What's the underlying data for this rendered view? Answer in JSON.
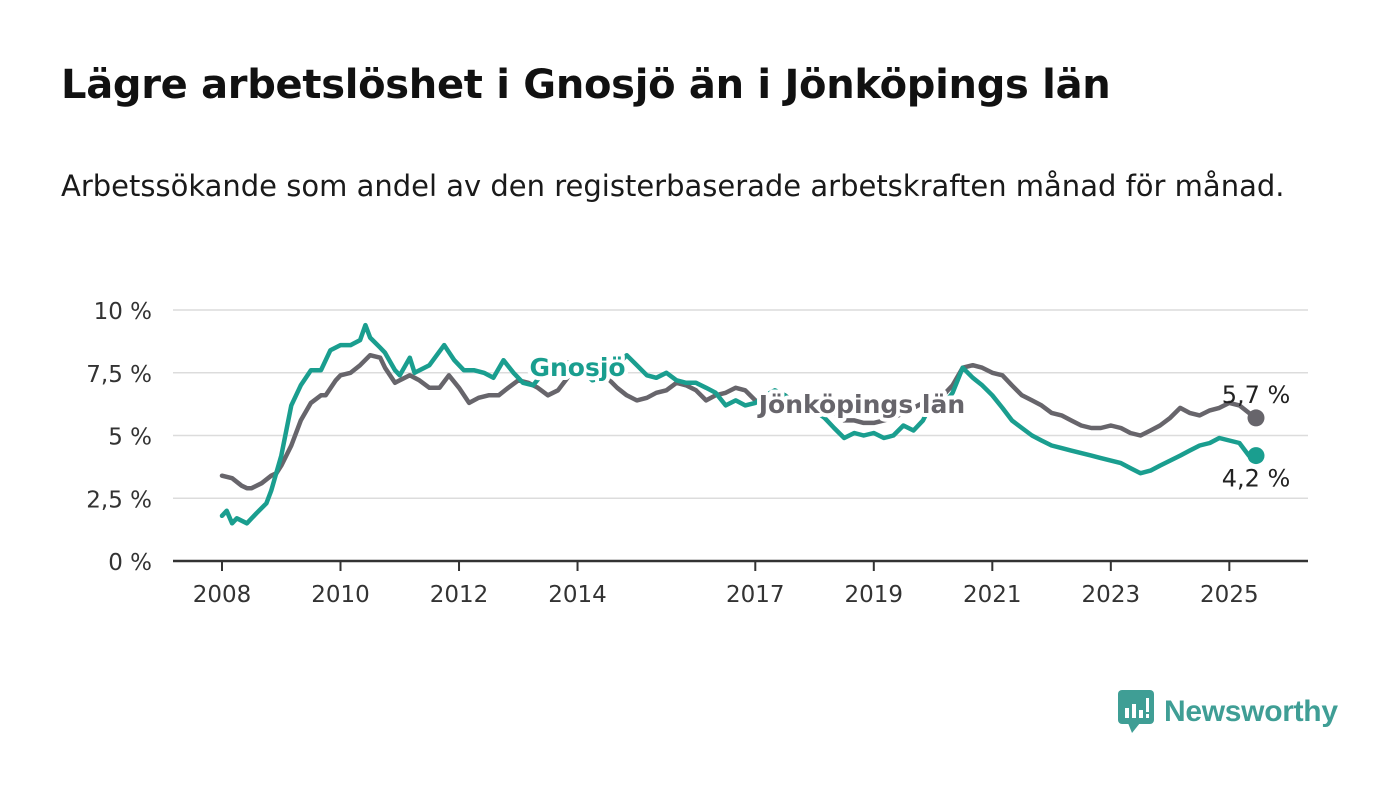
{
  "header": {
    "title": "Lägre arbetslöshet i Gnosjö än i Jönköpings län",
    "subtitle": "Arbetssökande som andel av den registerbaserade arbetskraften månad för månad."
  },
  "brand": {
    "name": "Newsworthy",
    "color": "#3f9e95"
  },
  "chart_data": {
    "type": "line",
    "ylim": [
      0,
      10
    ],
    "yticks": [
      {
        "value": 0,
        "label": "0 %"
      },
      {
        "value": 2.5,
        "label": "2,5 %"
      },
      {
        "value": 5,
        "label": "5 %"
      },
      {
        "value": 7.5,
        "label": "7,5 %"
      },
      {
        "value": 10,
        "label": "10 %"
      }
    ],
    "xlim": [
      2008,
      2025.5
    ],
    "xticks": [
      {
        "value": 2008,
        "label": "2008"
      },
      {
        "value": 2010,
        "label": "2010"
      },
      {
        "value": 2012,
        "label": "2012"
      },
      {
        "value": 2014,
        "label": "2014"
      },
      {
        "value": 2017,
        "label": "2017"
      },
      {
        "value": 2019,
        "label": "2019"
      },
      {
        "value": 2021,
        "label": "2021"
      },
      {
        "value": 2023,
        "label": "2023"
      },
      {
        "value": 2025,
        "label": "2025"
      }
    ],
    "grid": true,
    "series": [
      {
        "name": "Jönköpings län",
        "color": "#67656b",
        "label_pos": [
          2018.8,
          5.9
        ],
        "end_label": "5,7 %",
        "points": [
          [
            2008.0,
            3.4
          ],
          [
            2008.17,
            3.3
          ],
          [
            2008.33,
            3.0
          ],
          [
            2008.42,
            2.9
          ],
          [
            2008.5,
            2.9
          ],
          [
            2008.67,
            3.1
          ],
          [
            2008.83,
            3.4
          ],
          [
            2008.92,
            3.5
          ],
          [
            2009.0,
            3.8
          ],
          [
            2009.17,
            4.6
          ],
          [
            2009.33,
            5.6
          ],
          [
            2009.5,
            6.3
          ],
          [
            2009.67,
            6.6
          ],
          [
            2009.75,
            6.6
          ],
          [
            2009.92,
            7.2
          ],
          [
            2010.0,
            7.4
          ],
          [
            2010.17,
            7.5
          ],
          [
            2010.33,
            7.8
          ],
          [
            2010.5,
            8.2
          ],
          [
            2010.67,
            8.1
          ],
          [
            2010.75,
            7.7
          ],
          [
            2010.92,
            7.1
          ],
          [
            2011.0,
            7.2
          ],
          [
            2011.17,
            7.4
          ],
          [
            2011.33,
            7.2
          ],
          [
            2011.5,
            6.9
          ],
          [
            2011.67,
            6.9
          ],
          [
            2011.83,
            7.4
          ],
          [
            2012.0,
            6.9
          ],
          [
            2012.17,
            6.3
          ],
          [
            2012.33,
            6.5
          ],
          [
            2012.5,
            6.6
          ],
          [
            2012.67,
            6.6
          ],
          [
            2012.83,
            6.9
          ],
          [
            2013.0,
            7.2
          ],
          [
            2013.17,
            7.1
          ],
          [
            2013.33,
            6.9
          ],
          [
            2013.5,
            6.6
          ],
          [
            2013.67,
            6.8
          ],
          [
            2013.83,
            7.3
          ],
          [
            2014.0,
            7.7
          ],
          [
            2014.17,
            7.9
          ],
          [
            2014.33,
            7.6
          ],
          [
            2014.5,
            7.3
          ],
          [
            2014.67,
            6.9
          ],
          [
            2014.83,
            6.6
          ],
          [
            2015.0,
            6.4
          ],
          [
            2015.17,
            6.5
          ],
          [
            2015.33,
            6.7
          ],
          [
            2015.5,
            6.8
          ],
          [
            2015.67,
            7.1
          ],
          [
            2015.83,
            7.0
          ],
          [
            2016.0,
            6.8
          ],
          [
            2016.17,
            6.4
          ],
          [
            2016.33,
            6.6
          ],
          [
            2016.5,
            6.7
          ],
          [
            2016.67,
            6.9
          ],
          [
            2016.83,
            6.8
          ],
          [
            2017.0,
            6.4
          ],
          [
            2017.17,
            6.2
          ],
          [
            2017.33,
            6.4
          ],
          [
            2017.5,
            6.6
          ],
          [
            2017.67,
            6.3
          ],
          [
            2017.83,
            6.1
          ],
          [
            2018.0,
            6.2
          ],
          [
            2018.17,
            6.0
          ],
          [
            2018.33,
            5.9
          ],
          [
            2018.5,
            5.6
          ],
          [
            2018.67,
            5.6
          ],
          [
            2018.83,
            5.5
          ],
          [
            2019.0,
            5.5
          ],
          [
            2019.17,
            5.6
          ],
          [
            2019.33,
            5.7
          ],
          [
            2019.5,
            5.9
          ],
          [
            2019.67,
            6.1
          ],
          [
            2019.83,
            6.3
          ],
          [
            2020.0,
            6.4
          ],
          [
            2020.17,
            6.6
          ],
          [
            2020.33,
            7.0
          ],
          [
            2020.5,
            7.7
          ],
          [
            2020.67,
            7.8
          ],
          [
            2020.83,
            7.7
          ],
          [
            2021.0,
            7.5
          ],
          [
            2021.17,
            7.4
          ],
          [
            2021.33,
            7.0
          ],
          [
            2021.5,
            6.6
          ],
          [
            2021.67,
            6.4
          ],
          [
            2021.83,
            6.2
          ],
          [
            2022.0,
            5.9
          ],
          [
            2022.17,
            5.8
          ],
          [
            2022.33,
            5.6
          ],
          [
            2022.5,
            5.4
          ],
          [
            2022.67,
            5.3
          ],
          [
            2022.83,
            5.3
          ],
          [
            2023.0,
            5.4
          ],
          [
            2023.17,
            5.3
          ],
          [
            2023.33,
            5.1
          ],
          [
            2023.5,
            5.0
          ],
          [
            2023.67,
            5.2
          ],
          [
            2023.83,
            5.4
          ],
          [
            2024.0,
            5.7
          ],
          [
            2024.17,
            6.1
          ],
          [
            2024.33,
            5.9
          ],
          [
            2024.5,
            5.8
          ],
          [
            2024.67,
            6.0
          ],
          [
            2024.83,
            6.1
          ],
          [
            2025.0,
            6.3
          ],
          [
            2025.17,
            6.2
          ],
          [
            2025.33,
            5.9
          ],
          [
            2025.45,
            5.7
          ]
        ]
      },
      {
        "name": "Gnosjö",
        "color": "#1a9e8f",
        "label_pos": [
          2014.0,
          7.38
        ],
        "end_label": "4,2 %",
        "points": [
          [
            2008.0,
            1.8
          ],
          [
            2008.08,
            2.0
          ],
          [
            2008.17,
            1.5
          ],
          [
            2008.25,
            1.7
          ],
          [
            2008.42,
            1.5
          ],
          [
            2008.58,
            1.9
          ],
          [
            2008.75,
            2.3
          ],
          [
            2008.83,
            2.8
          ],
          [
            2009.0,
            4.2
          ],
          [
            2009.17,
            6.2
          ],
          [
            2009.33,
            7.0
          ],
          [
            2009.5,
            7.6
          ],
          [
            2009.67,
            7.6
          ],
          [
            2009.83,
            8.4
          ],
          [
            2010.0,
            8.6
          ],
          [
            2010.17,
            8.6
          ],
          [
            2010.33,
            8.8
          ],
          [
            2010.42,
            9.4
          ],
          [
            2010.5,
            8.9
          ],
          [
            2010.67,
            8.5
          ],
          [
            2010.75,
            8.3
          ],
          [
            2010.92,
            7.6
          ],
          [
            2011.0,
            7.4
          ],
          [
            2011.17,
            8.1
          ],
          [
            2011.25,
            7.5
          ],
          [
            2011.5,
            7.8
          ],
          [
            2011.75,
            8.6
          ],
          [
            2011.92,
            8.0
          ],
          [
            2012.08,
            7.6
          ],
          [
            2012.25,
            7.6
          ],
          [
            2012.42,
            7.5
          ],
          [
            2012.58,
            7.3
          ],
          [
            2012.75,
            8.0
          ],
          [
            2012.92,
            7.5
          ],
          [
            2013.08,
            7.1
          ],
          [
            2013.25,
            7.0
          ],
          [
            2013.42,
            7.5
          ],
          [
            2013.58,
            7.6
          ],
          [
            2013.75,
            7.9
          ],
          [
            2013.92,
            7.9
          ],
          [
            2014.08,
            7.6
          ],
          [
            2014.25,
            7.2
          ],
          [
            2014.42,
            7.3
          ],
          [
            2014.58,
            7.8
          ],
          [
            2014.75,
            8.0
          ],
          [
            2014.83,
            8.2
          ],
          [
            2015.0,
            7.8
          ],
          [
            2015.17,
            7.4
          ],
          [
            2015.33,
            7.3
          ],
          [
            2015.5,
            7.5
          ],
          [
            2015.67,
            7.2
          ],
          [
            2015.83,
            7.1
          ],
          [
            2016.0,
            7.1
          ],
          [
            2016.17,
            6.9
          ],
          [
            2016.33,
            6.7
          ],
          [
            2016.5,
            6.2
          ],
          [
            2016.67,
            6.4
          ],
          [
            2016.83,
            6.2
          ],
          [
            2017.0,
            6.3
          ],
          [
            2017.17,
            6.6
          ],
          [
            2017.33,
            6.8
          ],
          [
            2017.5,
            6.6
          ],
          [
            2017.67,
            6.2
          ],
          [
            2017.83,
            6.3
          ],
          [
            2018.0,
            6.0
          ],
          [
            2018.17,
            5.7
          ],
          [
            2018.33,
            5.3
          ],
          [
            2018.5,
            4.9
          ],
          [
            2018.67,
            5.1
          ],
          [
            2018.83,
            5.0
          ],
          [
            2019.0,
            5.1
          ],
          [
            2019.17,
            4.9
          ],
          [
            2019.33,
            5.0
          ],
          [
            2019.5,
            5.4
          ],
          [
            2019.67,
            5.2
          ],
          [
            2019.83,
            5.6
          ],
          [
            2020.0,
            6.4
          ],
          [
            2020.17,
            6.2
          ],
          [
            2020.33,
            6.7
          ],
          [
            2020.5,
            7.7
          ],
          [
            2020.67,
            7.3
          ],
          [
            2020.83,
            7.0
          ],
          [
            2021.0,
            6.6
          ],
          [
            2021.17,
            6.1
          ],
          [
            2021.33,
            5.6
          ],
          [
            2021.5,
            5.3
          ],
          [
            2021.67,
            5.0
          ],
          [
            2021.83,
            4.8
          ],
          [
            2022.0,
            4.6
          ],
          [
            2022.17,
            4.5
          ],
          [
            2022.33,
            4.4
          ],
          [
            2022.5,
            4.3
          ],
          [
            2022.67,
            4.2
          ],
          [
            2022.83,
            4.1
          ],
          [
            2023.0,
            4.0
          ],
          [
            2023.17,
            3.9
          ],
          [
            2023.33,
            3.7
          ],
          [
            2023.5,
            3.5
          ],
          [
            2023.67,
            3.6
          ],
          [
            2023.83,
            3.8
          ],
          [
            2024.0,
            4.0
          ],
          [
            2024.17,
            4.2
          ],
          [
            2024.33,
            4.4
          ],
          [
            2024.5,
            4.6
          ],
          [
            2024.67,
            4.7
          ],
          [
            2024.83,
            4.9
          ],
          [
            2025.0,
            4.8
          ],
          [
            2025.17,
            4.7
          ],
          [
            2025.33,
            4.2
          ],
          [
            2025.45,
            4.2
          ]
        ]
      }
    ]
  }
}
